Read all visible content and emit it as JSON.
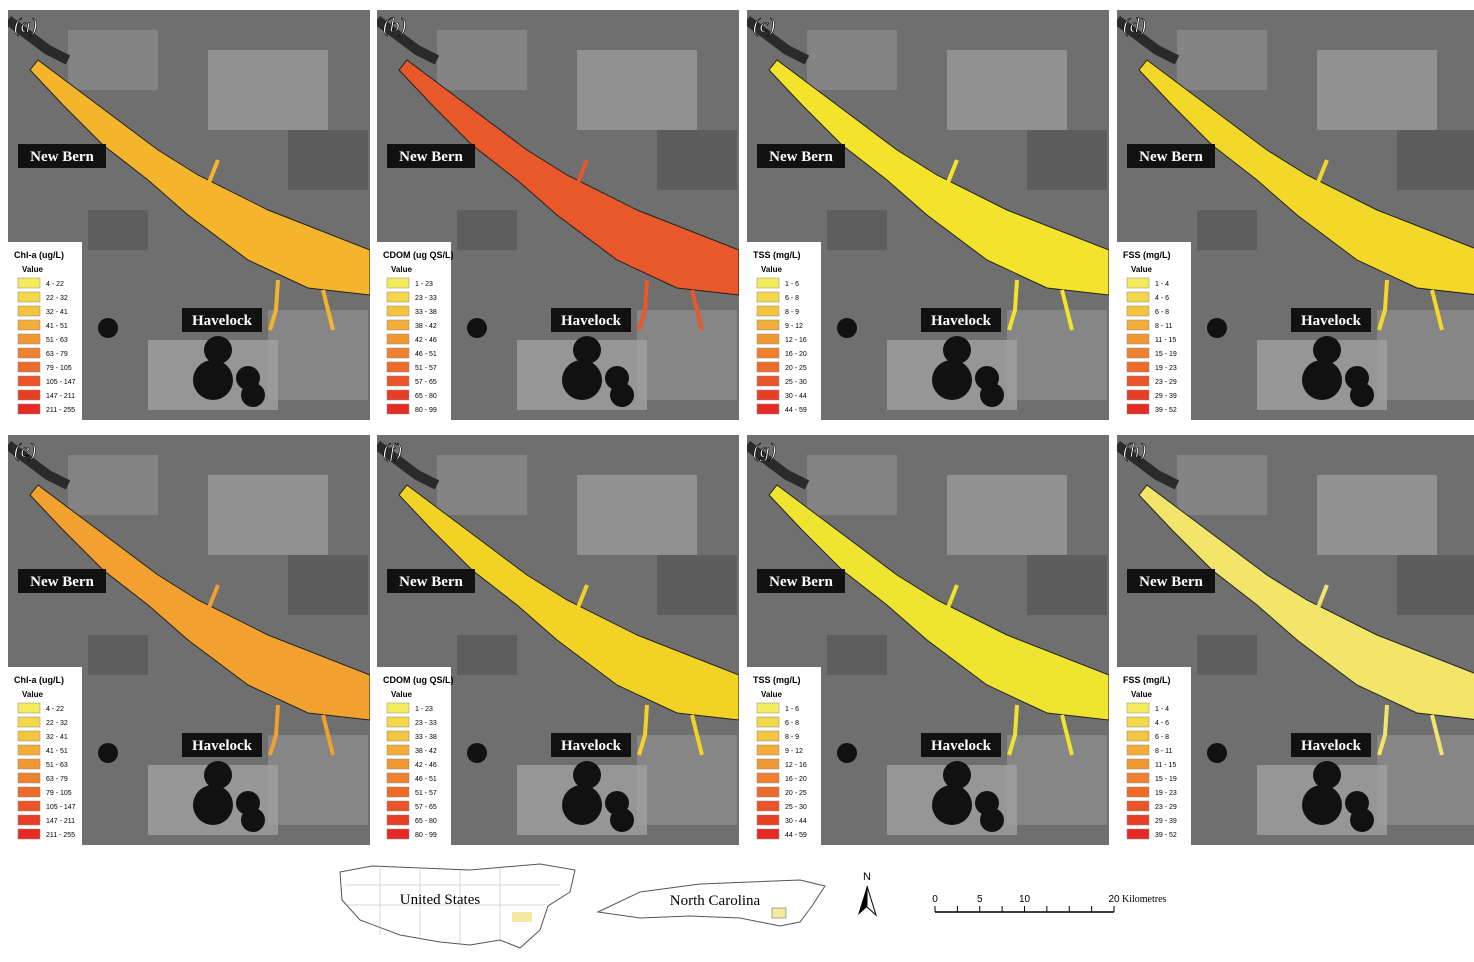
{
  "panel_rows": [
    [
      {
        "label": "(a)",
        "water_color": "#f4b42c"
      },
      {
        "label": "(b)",
        "water_color": "#e8582a"
      },
      {
        "label": "(c)",
        "water_color": "#f3e32a"
      },
      {
        "label": "(d)",
        "water_color": "#f3d82a"
      }
    ],
    [
      {
        "label": "(e)",
        "water_color": "#f2a030"
      },
      {
        "label": "(f)",
        "water_color": "#f3d226"
      },
      {
        "label": "(g)",
        "water_color": "#efe430"
      },
      {
        "label": "(h)",
        "water_color": "#f2e56a"
      }
    ]
  ],
  "places": {
    "city_1": "New Bern",
    "city_2": "Havelock"
  },
  "legend_heading": "Value",
  "class_colors": [
    "#f4ec5a",
    "#f4d84a",
    "#f4c43e",
    "#f2ae38",
    "#f09832",
    "#ee822e",
    "#ec6a2a",
    "#ea5428",
    "#e83e26",
    "#e62a24"
  ],
  "legends": [
    {
      "title": "Chl-a (ug/L)",
      "classes": [
        "4 - 22",
        "22 - 32",
        "32 - 41",
        "41 - 51",
        "51 - 63",
        "63 - 79",
        "79 - 105",
        "105 - 147",
        "147 - 211",
        "211 - 255"
      ]
    },
    {
      "title": "CDOM (ug QS/L)",
      "classes": [
        "1 - 23",
        "23 - 33",
        "33 - 38",
        "38 - 42",
        "42 - 46",
        "46 - 51",
        "51 - 57",
        "57 - 65",
        "65 - 80",
        "80 - 99"
      ]
    },
    {
      "title": "TSS (mg/L)",
      "classes": [
        "1 - 6",
        "6 - 8",
        "8 - 9",
        "9 - 12",
        "12 - 16",
        "16 - 20",
        "20 - 25",
        "25 - 30",
        "30 - 44",
        "44 - 59"
      ]
    },
    {
      "title": "FSS (mg/L)",
      "classes": [
        "1 - 4",
        "4 - 6",
        "6 - 8",
        "8 - 11",
        "11 - 15",
        "15 - 19",
        "19 - 23",
        "23 - 29",
        "29 - 39",
        "39 - 52"
      ]
    }
  ],
  "inset": {
    "country": "United States",
    "state": "North Carolina",
    "highlight_color": "#f3e9a0"
  },
  "north_arrow": "N",
  "scale_bar": {
    "ticks": [
      "0",
      "5",
      "10",
      "20"
    ],
    "unit": "Kilometres"
  }
}
